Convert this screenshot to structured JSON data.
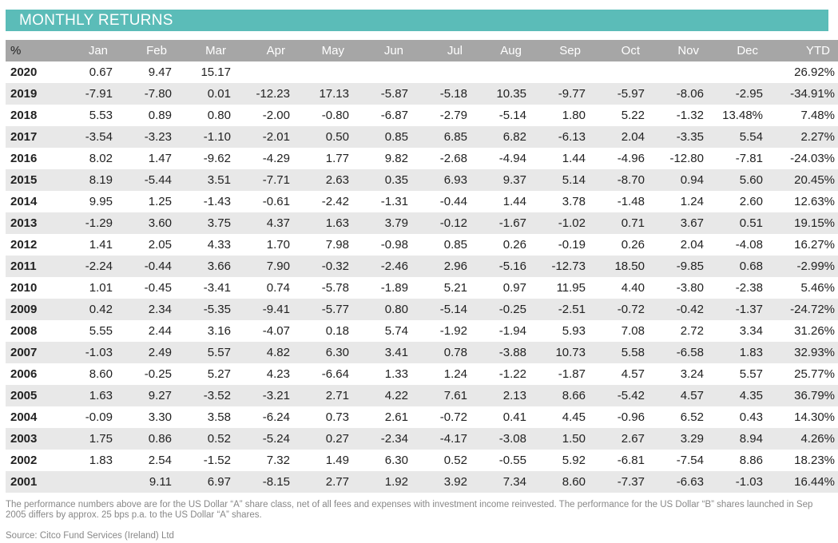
{
  "title": "MONTHLY RETURNS",
  "columns": [
    "%",
    "Jan",
    "Feb",
    "Mar",
    "Apr",
    "May",
    "Jun",
    "Jul",
    "Aug",
    "Sep",
    "Oct",
    "Nov",
    "Dec",
    "YTD"
  ],
  "rows": [
    [
      "2020",
      "0.67",
      "9.47",
      "15.17",
      "",
      "",
      "",
      "",
      "",
      "",
      "",
      "",
      "",
      "26.92%"
    ],
    [
      "2019",
      "-7.91",
      "-7.80",
      "0.01",
      "-12.23",
      "17.13",
      "-5.87",
      "-5.18",
      "10.35",
      "-9.77",
      "-5.97",
      "-8.06",
      "-2.95",
      "-34.91%"
    ],
    [
      "2018",
      "5.53",
      "0.89",
      "0.80",
      "-2.00",
      "-0.80",
      "-6.87",
      "-2.79",
      "-5.14",
      "1.80",
      "5.22",
      "-1.32",
      "13.48%",
      "7.48%"
    ],
    [
      "2017",
      "-3.54",
      "-3.23",
      "-1.10",
      "-2.01",
      "0.50",
      "0.85",
      "6.85",
      "6.82",
      "-6.13",
      "2.04",
      "-3.35",
      "5.54",
      "2.27%"
    ],
    [
      "2016",
      "8.02",
      "1.47",
      "-9.62",
      "-4.29",
      "1.77",
      "9.82",
      "-2.68",
      "-4.94",
      "1.44",
      "-4.96",
      "-12.80",
      "-7.81",
      "-24.03%"
    ],
    [
      "2015",
      "8.19",
      "-5.44",
      "3.51",
      "-7.71",
      "2.63",
      "0.35",
      "6.93",
      "9.37",
      "5.14",
      "-8.70",
      "0.94",
      "5.60",
      "20.45%"
    ],
    [
      "2014",
      "9.95",
      "1.25",
      "-1.43",
      "-0.61",
      "-2.42",
      "-1.31",
      "-0.44",
      "1.44",
      "3.78",
      "-1.48",
      "1.24",
      "2.60",
      "12.63%"
    ],
    [
      "2013",
      "-1.29",
      "3.60",
      "3.75",
      "4.37",
      "1.63",
      "3.79",
      "-0.12",
      "-1.67",
      "-1.02",
      "0.71",
      "3.67",
      "0.51",
      "19.15%"
    ],
    [
      "2012",
      "1.41",
      "2.05",
      "4.33",
      "1.70",
      "7.98",
      "-0.98",
      "0.85",
      "0.26",
      "-0.19",
      "0.26",
      "2.04",
      "-4.08",
      "16.27%"
    ],
    [
      "2011",
      "-2.24",
      "-0.44",
      "3.66",
      "7.90",
      "-0.32",
      "-2.46",
      "2.96",
      "-5.16",
      "-12.73",
      "18.50",
      "-9.85",
      "0.68",
      "-2.99%"
    ],
    [
      "2010",
      "1.01",
      "-0.45",
      "-3.41",
      "0.74",
      "-5.78",
      "-1.89",
      "5.21",
      "0.97",
      "11.95",
      "4.40",
      "-3.80",
      "-2.38",
      "5.46%"
    ],
    [
      "2009",
      "0.42",
      "2.34",
      "-5.35",
      "-9.41",
      "-5.77",
      "0.80",
      "-5.14",
      "-0.25",
      "-2.51",
      "-0.72",
      "-0.42",
      "-1.37",
      "-24.72%"
    ],
    [
      "2008",
      "5.55",
      "2.44",
      "3.16",
      "-4.07",
      "0.18",
      "5.74",
      "-1.92",
      "-1.94",
      "5.93",
      "7.08",
      "2.72",
      "3.34",
      "31.26%"
    ],
    [
      "2007",
      "-1.03",
      "2.49",
      "5.57",
      "4.82",
      "6.30",
      "3.41",
      "0.78",
      "-3.88",
      "10.73",
      "5.58",
      "-6.58",
      "1.83",
      "32.93%"
    ],
    [
      "2006",
      "8.60",
      "-0.25",
      "5.27",
      "4.23",
      "-6.64",
      "1.33",
      "1.24",
      "-1.22",
      "-1.87",
      "4.57",
      "3.24",
      "5.57",
      "25.77%"
    ],
    [
      "2005",
      "1.63",
      "9.27",
      "-3.52",
      "-3.21",
      "2.71",
      "4.22",
      "7.61",
      "2.13",
      "8.66",
      "-5.42",
      "4.57",
      "4.35",
      "36.79%"
    ],
    [
      "2004",
      "-0.09",
      "3.30",
      "3.58",
      "-6.24",
      "0.73",
      "2.61",
      "-0.72",
      "0.41",
      "4.45",
      "-0.96",
      "6.52",
      "0.43",
      "14.30%"
    ],
    [
      "2003",
      "1.75",
      "0.86",
      "0.52",
      "-5.24",
      "0.27",
      "-2.34",
      "-4.17",
      "-3.08",
      "1.50",
      "2.67",
      "3.29",
      "8.94",
      "4.26%"
    ],
    [
      "2002",
      "1.83",
      "2.54",
      "-1.52",
      "7.32",
      "1.49",
      "6.30",
      "0.52",
      "-0.55",
      "5.92",
      "-6.81",
      "-7.54",
      "8.86",
      "18.23%"
    ],
    [
      "2001",
      "",
      "9.11",
      "6.97",
      "-8.15",
      "2.77",
      "1.92",
      "3.92",
      "7.34",
      "8.60",
      "-7.37",
      "-6.63",
      "-1.03",
      "16.44%"
    ]
  ],
  "footnote": "The performance numbers above are for the US Dollar “A” share class, net of all fees and expenses with investment income reinvested. The performance for the US Dollar “B” shares launched in Sep 2005 differs by approx. 25 bps p.a. to the US Dollar “A” shares.",
  "source": "Source: Citco Fund Services (Ireland) Ltd",
  "colors": {
    "title_bar": "#5bbcb8",
    "header_row": "#a6a6a6",
    "stripe": "#e8e8e8"
  }
}
